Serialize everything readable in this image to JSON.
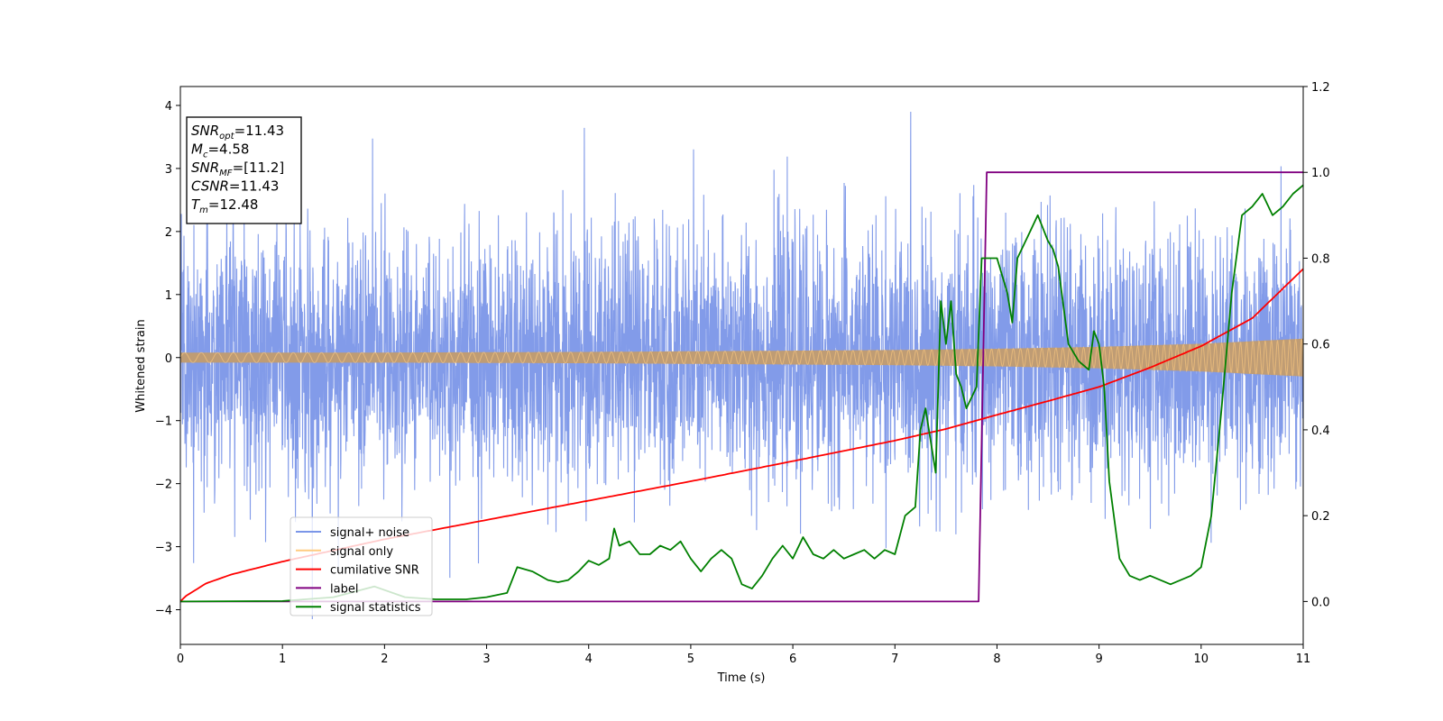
{
  "chart_data": {
    "type": "line",
    "xlabel": "Time (s)",
    "ylabel": "Whitened strain",
    "xlim": [
      0,
      11
    ],
    "ylim": [
      -4.55,
      4.3
    ],
    "y2lim": [
      -0.1,
      1.2
    ],
    "xticks": [
      0,
      1,
      2,
      3,
      4,
      5,
      6,
      7,
      8,
      9,
      10,
      11
    ],
    "yticks": [
      -4,
      -3,
      -2,
      -1,
      0,
      1,
      2,
      3,
      4
    ],
    "y2ticks": [
      0.0,
      0.2,
      0.4,
      0.6,
      0.8,
      1.0,
      1.2
    ],
    "grid": false,
    "legend_position": "lower-left",
    "annotation": [
      {
        "base": "SNR",
        "sub": "opt",
        "rest": "=11.43"
      },
      {
        "base": "M",
        "sub": "c",
        "rest": "=4.58"
      },
      {
        "base": "SNR",
        "sub": "MF",
        "rest": "=[11.2]"
      },
      {
        "base": "CSNR",
        "sub": "",
        "rest": "=11.43"
      },
      {
        "base": "T",
        "sub": "m",
        "rest": "=12.48"
      }
    ],
    "series": [
      {
        "name": "signal+ noise",
        "axis": "left",
        "color": "#7b96e8",
        "kind": "noise",
        "typical_range": [
          -2.0,
          2.0
        ],
        "peak_range": [
          -4.15,
          3.9
        ]
      },
      {
        "name": "signal only",
        "axis": "left",
        "color": "#ffcc80",
        "kind": "chirp-envelope",
        "x": [
          0,
          2,
          4,
          6,
          7,
          8,
          9,
          10,
          11
        ],
        "amplitude": [
          0.08,
          0.08,
          0.09,
          0.11,
          0.12,
          0.14,
          0.17,
          0.22,
          0.3
        ]
      },
      {
        "name": "cumilative SNR",
        "axis": "right",
        "color": "#ff0000",
        "x": [
          0,
          0.05,
          0.25,
          0.5,
          1,
          2,
          3,
          4,
          5,
          6,
          7,
          7.5,
          8,
          8.5,
          9,
          9.5,
          10,
          10.5,
          11
        ],
        "y": [
          0.0,
          0.012,
          0.042,
          0.063,
          0.093,
          0.145,
          0.19,
          0.235,
          0.28,
          0.327,
          0.375,
          0.402,
          0.435,
          0.467,
          0.5,
          0.545,
          0.595,
          0.66,
          0.775
        ]
      },
      {
        "name": "label",
        "axis": "right",
        "color": "#800080",
        "x": [
          0,
          7.82,
          7.9,
          11
        ],
        "y": [
          0,
          0,
          1,
          1
        ]
      },
      {
        "name": "signal statistics",
        "axis": "right",
        "color": "#008000",
        "x": [
          0,
          1,
          1.5,
          1.9,
          2.2,
          2.5,
          2.8,
          3.0,
          3.2,
          3.3,
          3.45,
          3.6,
          3.7,
          3.8,
          3.9,
          4.0,
          4.1,
          4.2,
          4.25,
          4.3,
          4.4,
          4.5,
          4.6,
          4.7,
          4.8,
          4.9,
          5.0,
          5.1,
          5.2,
          5.3,
          5.4,
          5.5,
          5.6,
          5.7,
          5.8,
          5.9,
          6.0,
          6.1,
          6.2,
          6.3,
          6.4,
          6.5,
          6.6,
          6.7,
          6.8,
          6.9,
          7.0,
          7.1,
          7.2,
          7.25,
          7.3,
          7.4,
          7.45,
          7.5,
          7.55,
          7.6,
          7.65,
          7.7,
          7.8,
          7.85,
          7.9,
          8.0,
          8.1,
          8.15,
          8.2,
          8.3,
          8.4,
          8.5,
          8.55,
          8.6,
          8.7,
          8.8,
          8.9,
          8.95,
          9.0,
          9.05,
          9.1,
          9.2,
          9.3,
          9.4,
          9.5,
          9.6,
          9.7,
          9.8,
          9.9,
          10.0,
          10.1,
          10.2,
          10.3,
          10.4,
          10.5,
          10.6,
          10.7,
          10.8,
          10.9,
          11.0
        ],
        "y": [
          0.0,
          0.001,
          0.01,
          0.035,
          0.01,
          0.005,
          0.005,
          0.01,
          0.02,
          0.08,
          0.07,
          0.05,
          0.045,
          0.05,
          0.07,
          0.095,
          0.085,
          0.1,
          0.17,
          0.13,
          0.14,
          0.11,
          0.11,
          0.13,
          0.12,
          0.14,
          0.1,
          0.07,
          0.1,
          0.12,
          0.1,
          0.04,
          0.03,
          0.06,
          0.1,
          0.13,
          0.1,
          0.15,
          0.11,
          0.1,
          0.12,
          0.1,
          0.11,
          0.12,
          0.1,
          0.12,
          0.11,
          0.2,
          0.22,
          0.4,
          0.45,
          0.3,
          0.7,
          0.6,
          0.7,
          0.53,
          0.5,
          0.45,
          0.5,
          0.8,
          0.8,
          0.8,
          0.72,
          0.65,
          0.8,
          0.85,
          0.9,
          0.84,
          0.82,
          0.78,
          0.6,
          0.56,
          0.54,
          0.63,
          0.6,
          0.5,
          0.28,
          0.1,
          0.06,
          0.05,
          0.06,
          0.05,
          0.04,
          0.05,
          0.06,
          0.08,
          0.2,
          0.45,
          0.72,
          0.9,
          0.92,
          0.95,
          0.9,
          0.92,
          0.95,
          0.97
        ]
      }
    ]
  }
}
